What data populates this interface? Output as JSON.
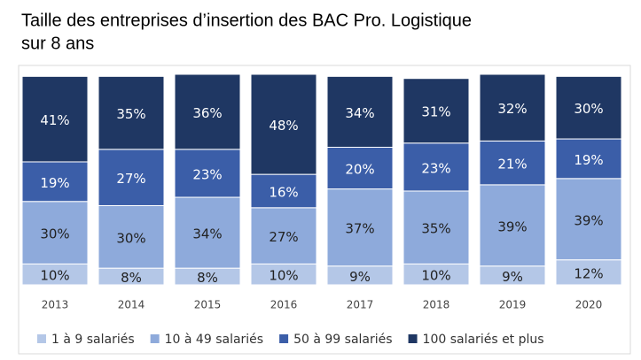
{
  "chart_data": {
    "type": "stacked_bar",
    "title": [
      "Taille des entreprises d’insertion des BAC Pro. Logistique",
      "sur 8 ans"
    ],
    "categories": [
      "2013",
      "2014",
      "2015",
      "2016",
      "2017",
      "2018",
      "2019",
      "2020"
    ],
    "series": [
      {
        "name": "1 à 9 salariés",
        "color": "#b4c7e7",
        "values": [
          10,
          8,
          8,
          10,
          9,
          10,
          9,
          12
        ],
        "value_labels": [
          "10%",
          "8%",
          "8%",
          "10%",
          "9%",
          "10%",
          "9%",
          "12%"
        ]
      },
      {
        "name": "10 à 49 salariés",
        "color": "#8eaadb",
        "values": [
          30,
          30,
          34,
          27,
          37,
          35,
          39,
          39
        ],
        "value_labels": [
          "30%",
          "30%",
          "34%",
          "27%",
          "37%",
          "35%",
          "39%",
          "39%"
        ]
      },
      {
        "name": "50 à 99 salariés",
        "color": "#3b5ea8",
        "values": [
          19,
          27,
          23,
          16,
          20,
          23,
          21,
          19
        ],
        "value_labels": [
          "19%",
          "27%",
          "23%",
          "16%",
          "20%",
          "23%",
          "21%",
          "19%"
        ]
      },
      {
        "name": "100 salariés et plus",
        "color": "#1f3763",
        "values": [
          41,
          35,
          36,
          48,
          34,
          31,
          32,
          30
        ],
        "value_labels": [
          "41%",
          "35%",
          "36%",
          "48%",
          "34%",
          "31%",
          "32%",
          "30%"
        ]
      }
    ],
    "legend": "bottom"
  }
}
